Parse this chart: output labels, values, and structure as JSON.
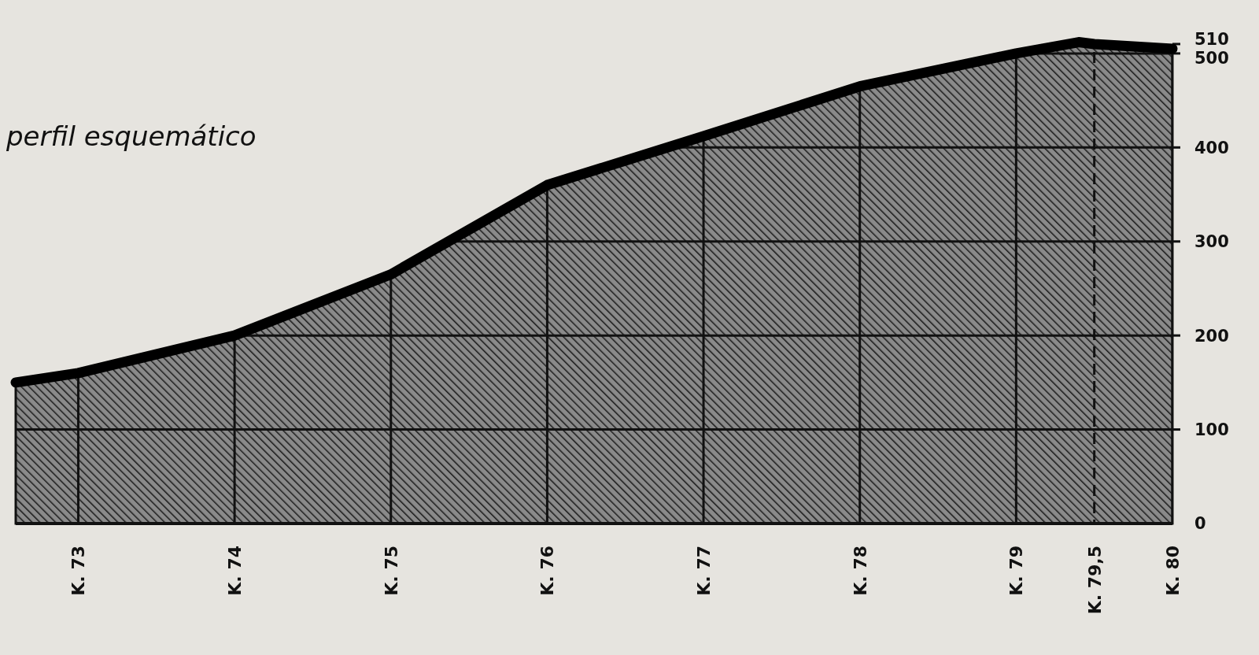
{
  "chart_data": {
    "type": "area",
    "title": "perfil esquemático",
    "x": [
      72.6,
      73,
      74,
      75,
      76,
      77,
      78,
      79,
      79.4,
      79.5,
      80
    ],
    "values": [
      150,
      160,
      200,
      265,
      360,
      412,
      465,
      500,
      512,
      510,
      505
    ],
    "color": "#000000",
    "xlim": [
      72.6,
      80
    ],
    "xticks": [
      {
        "value": 73,
        "label": "K. 73"
      },
      {
        "value": 74,
        "label": "K. 74"
      },
      {
        "value": 75,
        "label": "K. 75"
      },
      {
        "value": 76,
        "label": "K. 76"
      },
      {
        "value": 77,
        "label": "K. 77"
      },
      {
        "value": 78,
        "label": "K. 78"
      },
      {
        "value": 79,
        "label": "K. 79"
      },
      {
        "value": 79.5,
        "label": "K. 79,5"
      },
      {
        "value": 80,
        "label": "K. 80"
      }
    ],
    "ylim": [
      0,
      520
    ],
    "yticks": [
      0,
      100,
      200,
      300,
      400,
      500,
      510
    ],
    "grid": true,
    "ref_lines": [
      {
        "axis": "x",
        "value": 79.5,
        "line_style": "dashed"
      }
    ]
  }
}
